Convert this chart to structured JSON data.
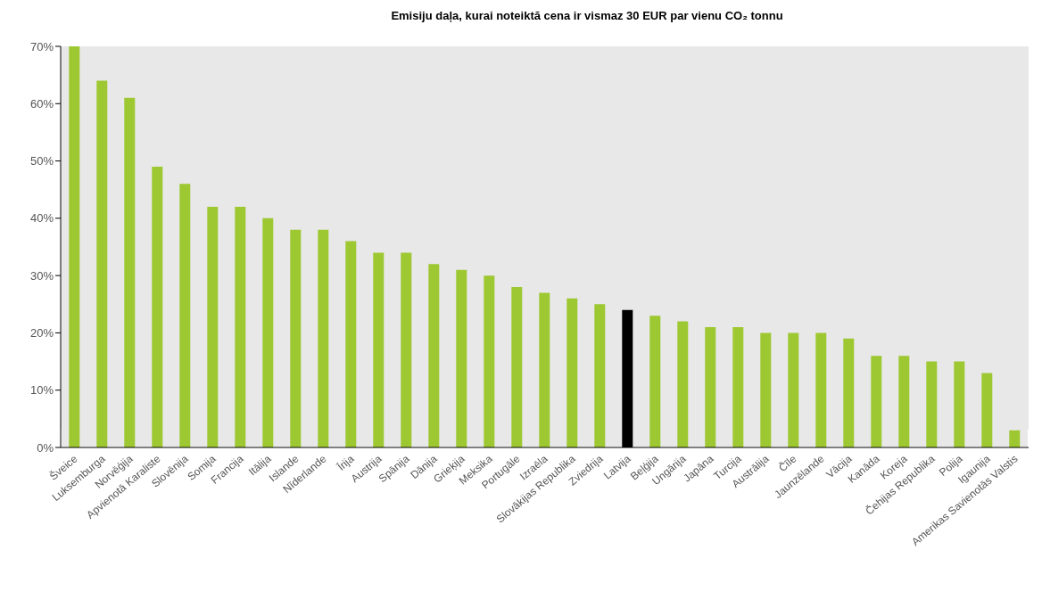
{
  "chart_data": {
    "type": "bar",
    "title": "Emisiju daļa, kurai noteiktā cena ir vismaz 30 EUR par vienu CO₂ tonnu",
    "categories": [
      "Šveice",
      "Luksemburga",
      "Norvēģija",
      "Apvienotā Karaliste",
      "Slovēnija",
      "Somija",
      "Francija",
      "Itālija",
      "Islande",
      "Nīderlande",
      "Īrija",
      "Austrija",
      "Spānija",
      "Dānija",
      "Grieķija",
      "Meksika",
      "Portugāle",
      "Izraēla",
      "Slovākijas Republika",
      "Zviedrija",
      "Latvija",
      "Beļģija",
      "Ungārija",
      "Japāna",
      "Turcija",
      "Austrālija",
      "Čīle",
      "Jaunzēlande",
      "Vācija",
      "Kanāda",
      "Koreja",
      "Čehijas Republika",
      "Polija",
      "Igaunija",
      "Amerikas Savienotās Valstis"
    ],
    "values": [
      70,
      64,
      61,
      49,
      46,
      42,
      42,
      40,
      38,
      38,
      36,
      34,
      34,
      32,
      31,
      30,
      28,
      27,
      26,
      25,
      24,
      23,
      22,
      21,
      21,
      20,
      20,
      20,
      19,
      16,
      16,
      15,
      15,
      13,
      3
    ],
    "colors": [
      "#9dc832",
      "#9dc832",
      "#9dc832",
      "#9dc832",
      "#9dc832",
      "#9dc832",
      "#9dc832",
      "#9dc832",
      "#9dc832",
      "#9dc832",
      "#9dc832",
      "#9dc832",
      "#9dc832",
      "#9dc832",
      "#9dc832",
      "#9dc832",
      "#9dc832",
      "#9dc832",
      "#9dc832",
      "#9dc832",
      "#000000",
      "#9dc832",
      "#9dc832",
      "#9dc832",
      "#9dc832",
      "#9dc832",
      "#9dc832",
      "#9dc832",
      "#9dc832",
      "#9dc832",
      "#9dc832",
      "#9dc832",
      "#9dc832",
      "#9dc832",
      "#9dc832"
    ],
    "ylim": [
      0,
      70
    ],
    "yticks": [
      {
        "value": 0,
        "label": "0%"
      },
      {
        "value": 10,
        "label": "10%"
      },
      {
        "value": 20,
        "label": "20%"
      },
      {
        "value": 30,
        "label": "30%"
      },
      {
        "value": 40,
        "label": "40%"
      },
      {
        "value": 50,
        "label": "50%"
      },
      {
        "value": 60,
        "label": "60%"
      },
      {
        "value": 70,
        "label": "70%"
      }
    ],
    "grid": true
  }
}
